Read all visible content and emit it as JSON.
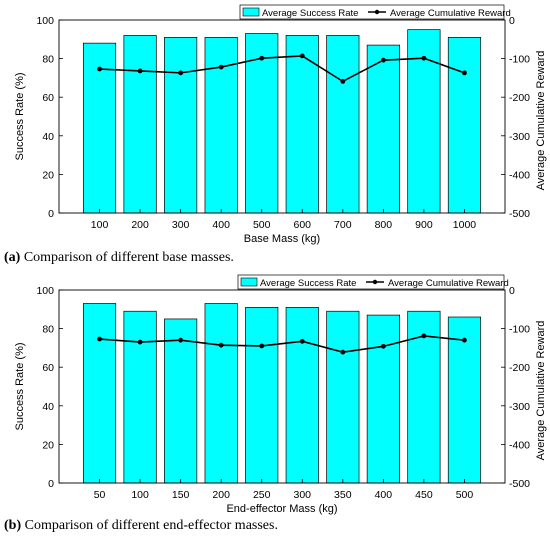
{
  "chart_data": [
    {
      "type": "bar",
      "categories": [
        "100",
        "200",
        "300",
        "400",
        "500",
        "600",
        "700",
        "800",
        "900",
        "1000"
      ],
      "series": [
        {
          "name": "Average Success Rate",
          "type": "bar",
          "axis": "left",
          "values": [
            88,
            92,
            91,
            91,
            93,
            92,
            92,
            87,
            95,
            91
          ]
        },
        {
          "name": "Average Cumulative Reward",
          "type": "line",
          "axis": "right",
          "values": [
            -127,
            -132,
            -137,
            -122,
            -99,
            -93,
            -159,
            -104,
            -99,
            -137
          ]
        }
      ],
      "xlabel": "Base Mass (kg)",
      "ylabel": "Success Rate (%)",
      "y2label": "Average Cumulative Reward",
      "ylim": [
        0,
        100
      ],
      "y2lim": [
        -500,
        0
      ],
      "yticks": [
        0,
        20,
        40,
        60,
        80,
        100
      ],
      "y2ticks": [
        -500,
        -400,
        -300,
        -200,
        -100,
        0
      ],
      "legend_position": "top-right",
      "grid": false,
      "bar_color": "#00FFFF",
      "line_color": "#000000",
      "caption_label": "(a)",
      "caption_text": "Comparison of different base masses."
    },
    {
      "type": "bar",
      "categories": [
        "50",
        "100",
        "150",
        "200",
        "250",
        "300",
        "350",
        "400",
        "450",
        "500"
      ],
      "series": [
        {
          "name": "Average Success Rate",
          "type": "bar",
          "axis": "left",
          "values": [
            93,
            89,
            85,
            93,
            91,
            91,
            89,
            87,
            89,
            86
          ]
        },
        {
          "name": "Average Cumulative Reward",
          "type": "line",
          "axis": "right",
          "values": [
            -127,
            -135,
            -130,
            -143,
            -145,
            -133,
            -161,
            -146,
            -119,
            -130
          ]
        }
      ],
      "xlabel": "End-effector Mass (kg)",
      "ylabel": "Success Rate (%)",
      "y2label": "Average Cumulative Reward",
      "ylim": [
        0,
        100
      ],
      "y2lim": [
        -500,
        0
      ],
      "yticks": [
        0,
        20,
        40,
        60,
        80,
        100
      ],
      "y2ticks": [
        -500,
        -400,
        -300,
        -200,
        -100,
        0
      ],
      "legend_position": "top-right",
      "grid": false,
      "bar_color": "#00FFFF",
      "line_color": "#000000",
      "caption_label": "(b)",
      "caption_text": "Comparison of different end-effector masses."
    }
  ]
}
